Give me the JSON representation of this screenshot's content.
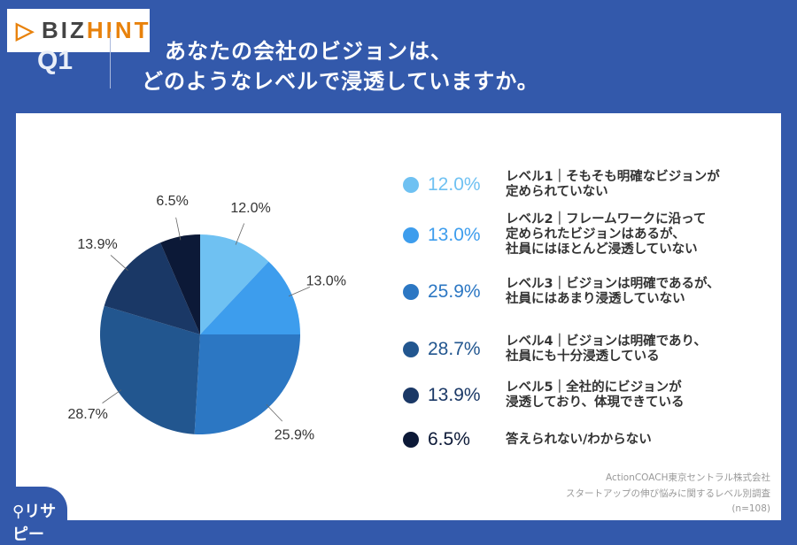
{
  "header": {
    "q": "Q1",
    "title_line1": "あなたの会社のビジョンは、",
    "title_line2": "どのようなレベルで浸透していますか。"
  },
  "logo": {
    "part1": "BIZ",
    "part2": "HINT"
  },
  "chart_data": {
    "type": "pie",
    "start": "top",
    "direction": "clockwise",
    "slices": [
      {
        "value": 12.0,
        "label": "12.0%",
        "legend": "レベル1｜そもそも明確なビジョンが\n定められていない",
        "color": "#6fc1f2"
      },
      {
        "value": 13.0,
        "label": "13.0%",
        "legend": "レベル2｜フレームワークに沿って\n定められたビジョンはあるが、\n社員にはほとんど浸透していない",
        "color": "#3d9ded"
      },
      {
        "value": 25.9,
        "label": "25.9%",
        "legend": "レベル3｜ビジョンは明確であるが、\n社員にはあまり浸透していない",
        "color": "#2c77c3"
      },
      {
        "value": 28.7,
        "label": "28.7%",
        "legend": "レベル4｜ビジョンは明確であり、\n社員にも十分浸透している",
        "color": "#22568f"
      },
      {
        "value": 13.9,
        "label": "13.9%",
        "legend": "レベル5｜全社的にビジョンが\n浸透しており、体現できている",
        "color": "#1a3866"
      },
      {
        "value": 6.5,
        "label": "6.5%",
        "legend": "答えられない/わからない",
        "color": "#0c1937"
      }
    ]
  },
  "source": {
    "line1": "ActionCOACH東京セントラル株式会社",
    "line2": "スタートアップの伸び悩みに関するレベル別調査",
    "line3": "(n=108)"
  },
  "brand": "リサピー"
}
